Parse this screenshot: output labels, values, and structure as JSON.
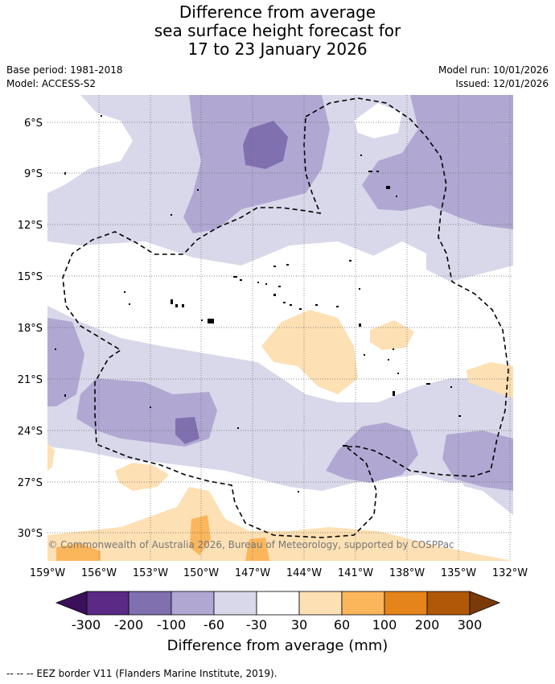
{
  "header": {
    "title_line1": "Difference from average",
    "title_line2": "sea surface height forecast for",
    "title_line3": "17 to 23 January 2026",
    "base_period": "Base period: 1981-2018",
    "model": "Model: ACCESS-S2",
    "model_run": "Model run: 10/01/2026",
    "issued": "Issued: 12/01/2026"
  },
  "map": {
    "lat_labels": [
      "6°S",
      "9°S",
      "12°S",
      "15°S",
      "18°S",
      "21°S",
      "24°S",
      "27°S",
      "30°S"
    ],
    "lon_labels": [
      "159°W",
      "156°W",
      "153°W",
      "150°W",
      "147°W",
      "144°W",
      "141°W",
      "138°W",
      "135°W",
      "132°W"
    ],
    "copyright": "© Commonwealth of Australia 2026, Bureau of Meteorology, supported by COSPPac"
  },
  "colorbar": {
    "tick_labels": [
      "-300",
      "-200",
      "-100",
      "-60",
      "-30",
      "30",
      "60",
      "100",
      "200",
      "300"
    ],
    "colors": [
      "#5a2a86",
      "#8070b0",
      "#b0a8d2",
      "#d8d8ea",
      "#ffffff",
      "#fde0b4",
      "#fbb65c",
      "#e5841a",
      "#b05808"
    ],
    "end_low_color": "#3b0f5a",
    "end_high_color": "#7a3b08",
    "label": "Difference from average (mm)"
  },
  "legend": {
    "eez_text": "--  --  -- EEZ border V11 (Flanders Marine Institute, 2019)."
  }
}
